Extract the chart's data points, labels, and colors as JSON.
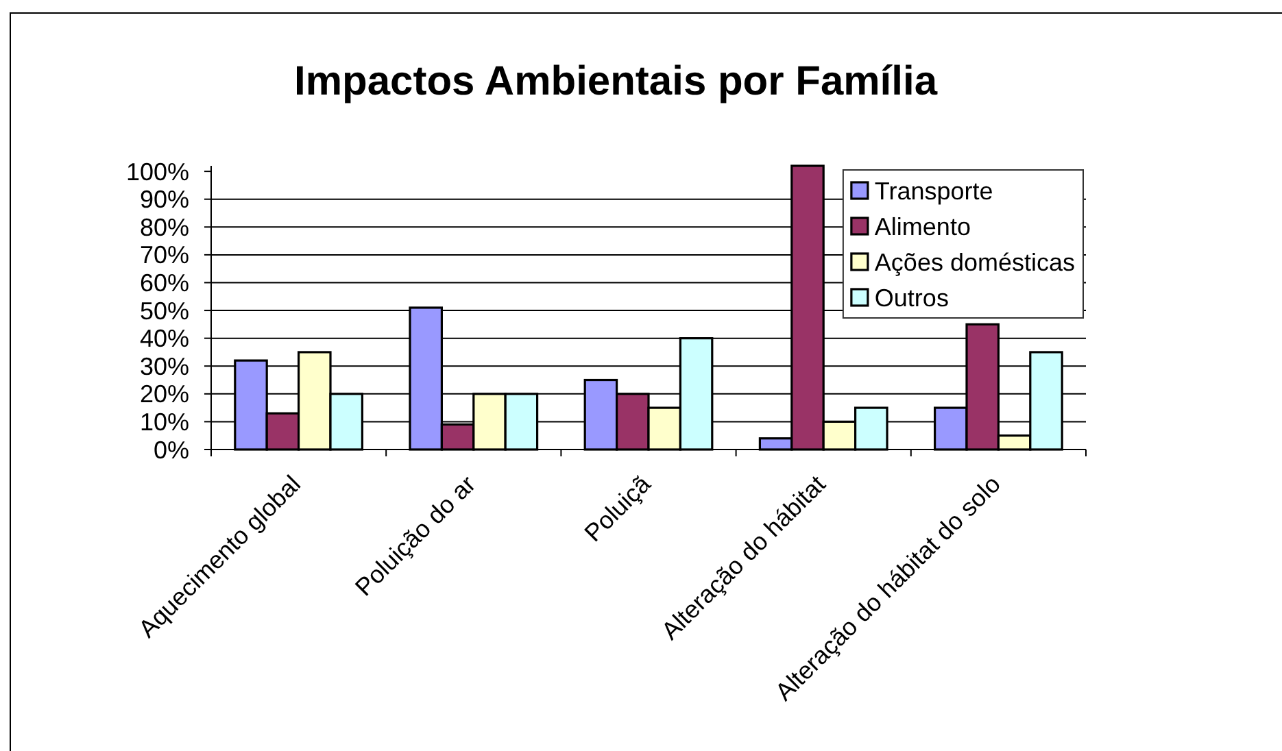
{
  "chart_data": {
    "type": "bar",
    "title": "Impactos Ambientais por Família",
    "categories": [
      "Aquecimento global",
      "Poluição do ar",
      "Poluiçã",
      "Alteração do hábitat",
      "Alteração do hábitat do solo"
    ],
    "series": [
      {
        "name": "Transporte",
        "color": "#9999ff",
        "values": [
          32,
          51,
          25,
          4,
          15
        ]
      },
      {
        "name": "Alimento",
        "color": "#993366",
        "values": [
          13,
          9,
          20,
          102,
          45
        ]
      },
      {
        "name": "Ações domésticas",
        "color": "#ffffcc",
        "values": [
          35,
          20,
          15,
          10,
          5
        ]
      },
      {
        "name": "Outros",
        "color": "#ccffff",
        "values": [
          20,
          20,
          40,
          15,
          35
        ]
      }
    ],
    "ylim": [
      0,
      102
    ],
    "yticks": [
      {
        "value": 0,
        "label": "0%"
      },
      {
        "value": 10,
        "label": "10%"
      },
      {
        "value": 20,
        "label": "20%"
      },
      {
        "value": 30,
        "label": "30%"
      },
      {
        "value": 40,
        "label": "40%"
      },
      {
        "value": 50,
        "label": "50%"
      },
      {
        "value": 60,
        "label": "60%"
      },
      {
        "value": 70,
        "label": "70%"
      },
      {
        "value": 80,
        "label": "80%"
      },
      {
        "value": 90,
        "label": "90%"
      },
      {
        "value": 100,
        "label": "100%"
      }
    ],
    "grid": "y",
    "legend": "top right"
  }
}
